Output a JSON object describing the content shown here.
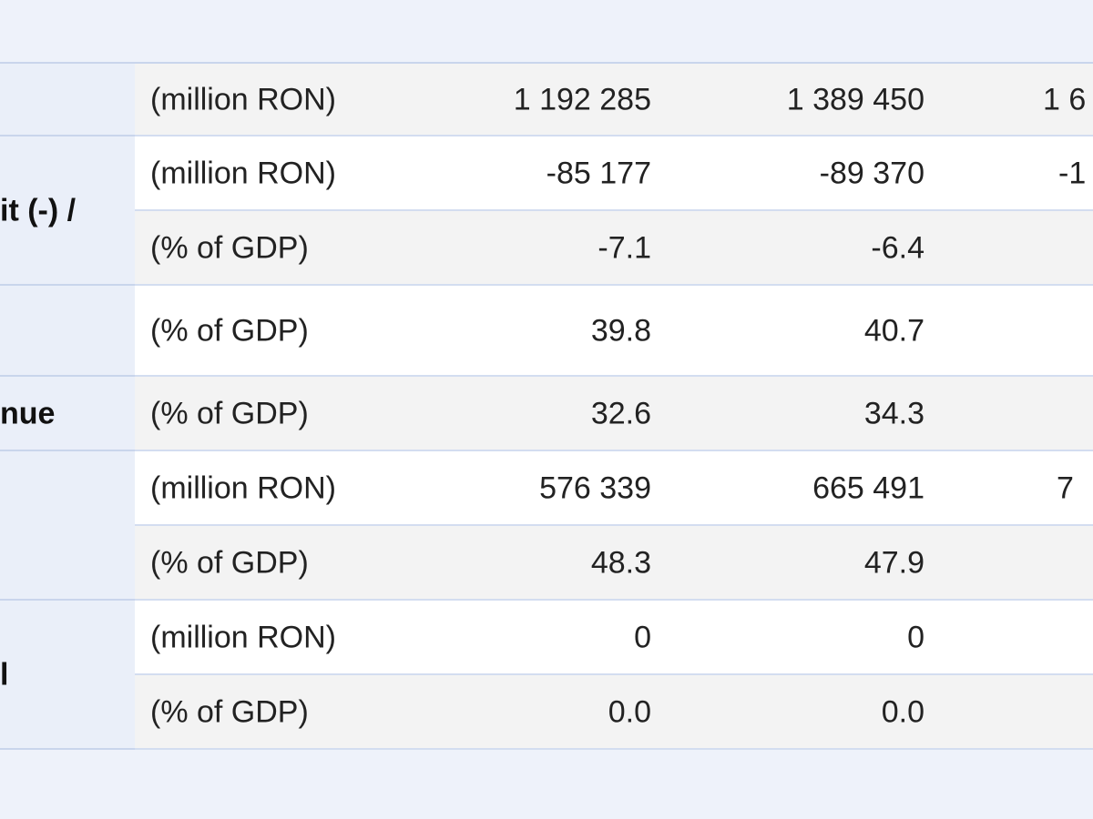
{
  "table": {
    "groups": [
      {
        "rows": [
          {
            "unit": "(million RON)",
            "cells": [
              "1 192 285",
              "1 389 450",
              "1 6"
            ]
          }
        ]
      },
      {
        "label": "it (-) /",
        "rows": [
          {
            "unit": "(million RON)",
            "cells": [
              "-85 177",
              "-89 370",
              "-1"
            ]
          },
          {
            "unit": "(% of GDP)",
            "cells": [
              "-7.1",
              "-6.4"
            ]
          }
        ]
      },
      {
        "rows": [
          {
            "unit": "(% of GDP)",
            "cells": [
              "39.8",
              "40.7"
            ]
          }
        ]
      },
      {
        "label": "nue",
        "rows": [
          {
            "unit": "(% of GDP)",
            "cells": [
              "32.6",
              "34.3"
            ]
          }
        ]
      },
      {
        "rows": [
          {
            "unit": "(million RON)",
            "cells": [
              "576 339",
              "665 491",
              "7"
            ]
          },
          {
            "unit": "(% of GDP)",
            "cells": [
              "48.3",
              "47.9"
            ]
          }
        ]
      },
      {
        "label": "l",
        "rows": [
          {
            "unit": "(million RON)",
            "cells": [
              "0",
              "0"
            ]
          },
          {
            "unit": "(% of GDP)",
            "cells": [
              "0.0",
              "0.0"
            ]
          }
        ]
      }
    ]
  }
}
